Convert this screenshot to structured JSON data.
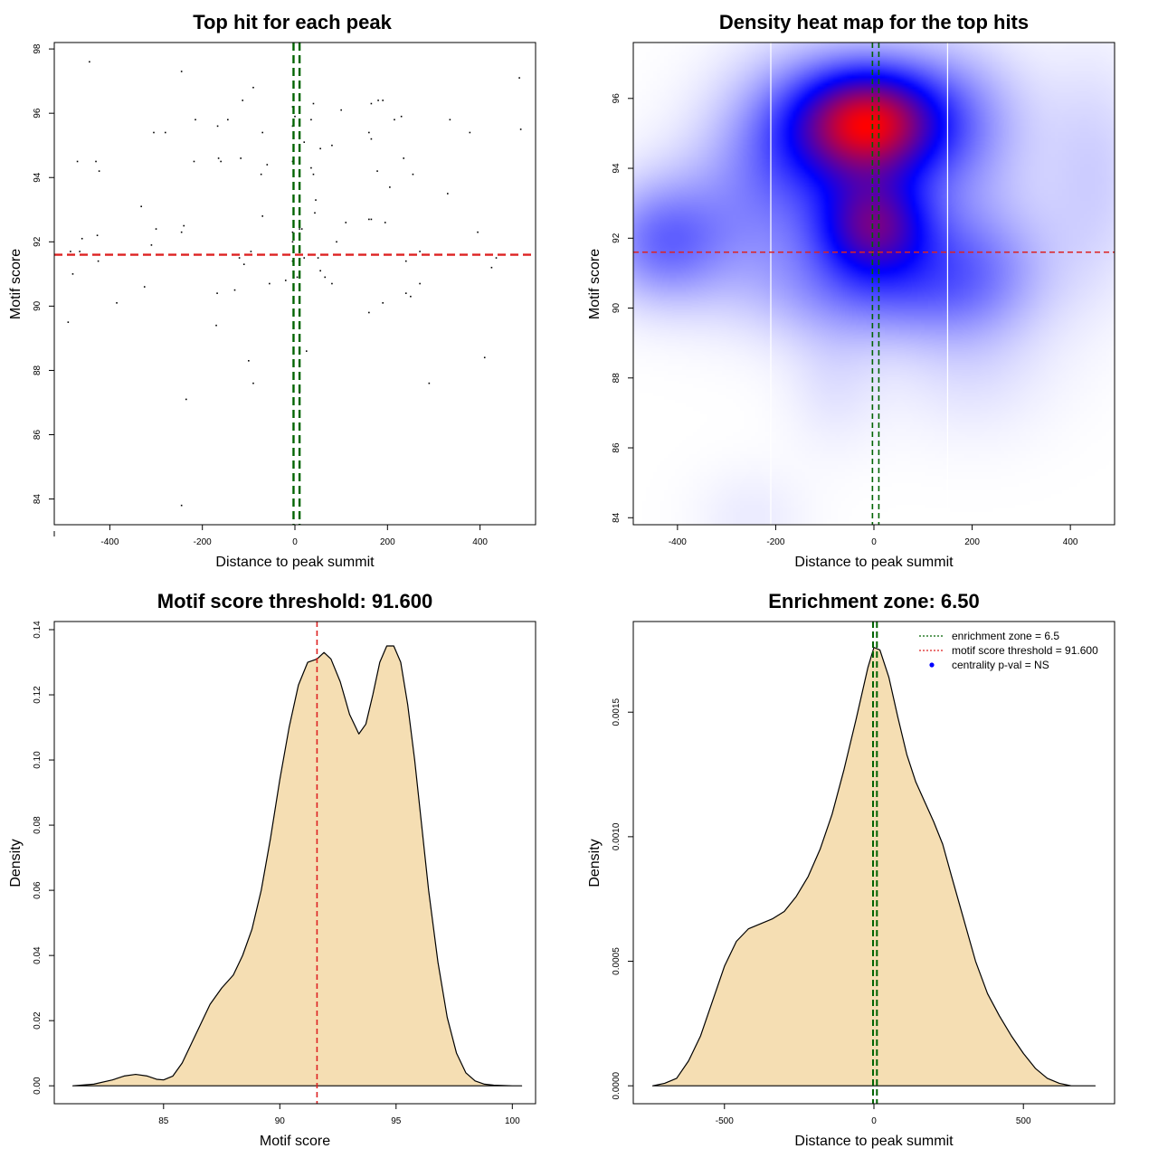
{
  "chart_data": [
    {
      "id": "scatter",
      "type": "scatter",
      "title": "Top hit for each peak",
      "xlabel": "Distance to peak summit",
      "ylabel": "Motif score",
      "xlim": [
        -520,
        520
      ],
      "ylim": [
        83.2,
        98.2
      ],
      "xticks": [
        -400,
        -200,
        0,
        200,
        400
      ],
      "xtick_labels": [
        "-400",
        "-200",
        "0",
        "200",
        "400"
      ],
      "yticks": [
        84,
        86,
        88,
        90,
        92,
        94,
        96,
        98
      ],
      "ytick_labels": [
        "84",
        "86",
        "88",
        "90",
        "92",
        "94",
        "96",
        "98"
      ],
      "vlines": [
        {
          "x": -3,
          "color": "#006400",
          "style": "dashed"
        },
        {
          "x": 10,
          "color": "#006400",
          "style": "dashed"
        }
      ],
      "hlines": [
        {
          "y": 91.6,
          "color": "#dd2222",
          "style": "dashed"
        }
      ],
      "points": [
        [
          -444,
          97.6
        ],
        [
          -245,
          97.3
        ],
        [
          485,
          97.1
        ],
        [
          -90,
          96.8
        ],
        [
          -113,
          96.4
        ],
        [
          10,
          96.4
        ],
        [
          165,
          96.3
        ],
        [
          190,
          96.4
        ],
        [
          180,
          96.4
        ],
        [
          40,
          96.3
        ],
        [
          -5,
          96.2
        ],
        [
          100,
          96.1
        ],
        [
          0,
          95.9
        ],
        [
          35,
          95.8
        ],
        [
          -215,
          95.8
        ],
        [
          -145,
          95.8
        ],
        [
          215,
          95.8
        ],
        [
          230,
          95.9
        ],
        [
          335,
          95.8
        ],
        [
          -167,
          95.6
        ],
        [
          -5,
          95.6
        ],
        [
          488,
          95.5
        ],
        [
          -305,
          95.4
        ],
        [
          -280,
          95.4
        ],
        [
          -70,
          95.4
        ],
        [
          160,
          95.4
        ],
        [
          165,
          95.2
        ],
        [
          378,
          95.4
        ],
        [
          20,
          95.1
        ],
        [
          80,
          95.0
        ],
        [
          55,
          94.9
        ],
        [
          -165,
          94.6
        ],
        [
          -117,
          94.6
        ],
        [
          -470,
          94.5
        ],
        [
          -430,
          94.5
        ],
        [
          -218,
          94.5
        ],
        [
          -160,
          94.5
        ],
        [
          -60,
          94.4
        ],
        [
          -5,
          94.5
        ],
        [
          40,
          94.1
        ],
        [
          35,
          94.3
        ],
        [
          235,
          94.6
        ],
        [
          -423,
          94.2
        ],
        [
          -73,
          94.1
        ],
        [
          255,
          94.1
        ],
        [
          178,
          94.2
        ],
        [
          205,
          93.7
        ],
        [
          330,
          93.5
        ],
        [
          45,
          93.3
        ],
        [
          -332,
          93.1
        ],
        [
          43,
          92.9
        ],
        [
          -70,
          92.8
        ],
        [
          160,
          92.7
        ],
        [
          165,
          92.7
        ],
        [
          195,
          92.6
        ],
        [
          110,
          92.6
        ],
        [
          -240,
          92.5
        ],
        [
          -300,
          92.4
        ],
        [
          -245,
          92.3
        ],
        [
          15,
          92.4
        ],
        [
          -5,
          92.3
        ],
        [
          10,
          92.4
        ],
        [
          395,
          92.3
        ],
        [
          -460,
          92.1
        ],
        [
          -427,
          92.2
        ],
        [
          -5,
          92.0
        ],
        [
          -310,
          91.9
        ],
        [
          90,
          92.0
        ],
        [
          -485,
          91.7
        ],
        [
          -465,
          91.7
        ],
        [
          -95,
          91.7
        ],
        [
          -120,
          91.5
        ],
        [
          -110,
          91.3
        ],
        [
          -5,
          91.4
        ],
        [
          20,
          91.5
        ],
        [
          50,
          91.5
        ],
        [
          240,
          91.4
        ],
        [
          270,
          91.7
        ],
        [
          425,
          91.2
        ],
        [
          435,
          91.5
        ],
        [
          -425,
          91.4
        ],
        [
          -480,
          91.0
        ],
        [
          -55,
          90.7
        ],
        [
          -20,
          90.8
        ],
        [
          5,
          90.9
        ],
        [
          55,
          91.1
        ],
        [
          65,
          90.9
        ],
        [
          80,
          90.7
        ],
        [
          270,
          90.7
        ],
        [
          -325,
          90.6
        ],
        [
          -130,
          90.5
        ],
        [
          -168,
          90.4
        ],
        [
          240,
          90.4
        ],
        [
          250,
          90.3
        ],
        [
          -385,
          90.1
        ],
        [
          190,
          90.1
        ],
        [
          -490,
          89.5
        ],
        [
          -170,
          89.4
        ],
        [
          160,
          89.8
        ],
        [
          25,
          88.6
        ],
        [
          410,
          88.4
        ],
        [
          -100,
          88.3
        ],
        [
          -90,
          87.6
        ],
        [
          290,
          87.6
        ],
        [
          10,
          87.3
        ],
        [
          -235,
          87.1
        ],
        [
          -245,
          83.8
        ]
      ]
    },
    {
      "id": "heatmap",
      "type": "heatmap",
      "title": "Density heat map for the top hits",
      "xlabel": "Distance to peak summit",
      "ylabel": "Motif score",
      "xlim": [
        -490,
        490
      ],
      "ylim": [
        83.8,
        97.6
      ],
      "xticks": [
        -400,
        -200,
        0,
        200,
        400
      ],
      "xtick_labels": [
        "-400",
        "-200",
        "0",
        "200",
        "400"
      ],
      "yticks": [
        84,
        86,
        88,
        90,
        92,
        94,
        96
      ],
      "ytick_labels": [
        "84",
        "86",
        "88",
        "90",
        "92",
        "94",
        "96"
      ],
      "color_scale": [
        "#ffffff",
        "#0000ff",
        "#ff0000"
      ],
      "white_vlines": [
        -210,
        150
      ],
      "vlines": [
        {
          "x": -3,
          "color": "#006400",
          "style": "dashed"
        },
        {
          "x": 10,
          "color": "#006400",
          "style": "dashed"
        }
      ],
      "hlines": [
        {
          "y": 91.6,
          "color": "#dd2222",
          "style": "dashed"
        }
      ],
      "density_blobs": [
        {
          "x": -10,
          "y": 95.3,
          "sx": 95,
          "sy": 1.1,
          "w": 1.0
        },
        {
          "x": 0,
          "y": 92.4,
          "sx": 80,
          "sy": 1.0,
          "w": 0.72
        },
        {
          "x": -140,
          "y": 95.0,
          "sx": 110,
          "sy": 1.6,
          "w": 0.35
        },
        {
          "x": 150,
          "y": 95.2,
          "sx": 110,
          "sy": 1.6,
          "w": 0.33
        },
        {
          "x": -430,
          "y": 91.9,
          "sx": 90,
          "sy": 1.2,
          "w": 0.35
        },
        {
          "x": 0,
          "y": 90.6,
          "sx": 150,
          "sy": 1.1,
          "w": 0.3
        },
        {
          "x": 200,
          "y": 91.2,
          "sx": 110,
          "sy": 1.4,
          "w": 0.28
        },
        {
          "x": 450,
          "y": 93.8,
          "sx": 80,
          "sy": 2.4,
          "w": 0.12
        },
        {
          "x": -240,
          "y": 92.8,
          "sx": 120,
          "sy": 1.8,
          "w": 0.2
        },
        {
          "x": -80,
          "y": 88.0,
          "sx": 70,
          "sy": 1.4,
          "w": 0.07
        },
        {
          "x": 200,
          "y": 88.2,
          "sx": 120,
          "sy": 1.4,
          "w": 0.07
        },
        {
          "x": -250,
          "y": 84.0,
          "sx": 80,
          "sy": 1.0,
          "w": 0.05
        }
      ]
    },
    {
      "id": "score-density",
      "type": "area",
      "title": "Motif score threshold: 91.600",
      "xlabel": "Motif score",
      "ylabel": "Density",
      "xlim": [
        80.3,
        101.0
      ],
      "ylim": [
        -0.0055,
        0.1425
      ],
      "xticks": [
        85,
        90,
        95,
        100
      ],
      "xtick_labels": [
        "85",
        "90",
        "95",
        "100"
      ],
      "yticks": [
        0.0,
        0.02,
        0.04,
        0.06,
        0.08,
        0.1,
        0.12,
        0.14
      ],
      "ytick_labels": [
        "0.00",
        "0.02",
        "0.04",
        "0.06",
        "0.08",
        "0.10",
        "0.12",
        "0.14"
      ],
      "fill_color": "#f5deb3",
      "vlines": [
        {
          "x": 91.6,
          "color": "#dd2222",
          "style": "dashed"
        }
      ],
      "x": [
        81.1,
        82.0,
        82.8,
        83.3,
        83.8,
        84.3,
        84.7,
        85.0,
        85.4,
        85.8,
        86.2,
        86.6,
        87.0,
        87.5,
        88.0,
        88.4,
        88.8,
        89.2,
        89.6,
        90.0,
        90.4,
        90.8,
        91.2,
        91.6,
        91.9,
        92.2,
        92.6,
        93.0,
        93.4,
        93.7,
        94.0,
        94.3,
        94.6,
        94.9,
        95.2,
        95.5,
        95.8,
        96.1,
        96.4,
        96.8,
        97.2,
        97.6,
        98.0,
        98.4,
        98.8,
        99.2,
        99.6,
        100.0,
        100.4
      ],
      "y": [
        0.0,
        0.0005,
        0.0018,
        0.003,
        0.0035,
        0.003,
        0.002,
        0.0018,
        0.003,
        0.007,
        0.013,
        0.019,
        0.025,
        0.03,
        0.034,
        0.04,
        0.048,
        0.06,
        0.076,
        0.094,
        0.11,
        0.123,
        0.13,
        0.131,
        0.133,
        0.131,
        0.124,
        0.114,
        0.108,
        0.111,
        0.12,
        0.13,
        0.135,
        0.135,
        0.13,
        0.117,
        0.1,
        0.08,
        0.06,
        0.038,
        0.021,
        0.01,
        0.004,
        0.0015,
        0.0005,
        0.0002,
        0.0001,
        0.0,
        0.0
      ]
    },
    {
      "id": "distance-density",
      "type": "area",
      "title": "Enrichment zone: 6.50",
      "xlabel": "Distance to peak summit",
      "ylabel": "Density",
      "xlim": [
        -805,
        805
      ],
      "ylim": [
        -7.2e-05,
        0.001864
      ],
      "xticks": [
        -500,
        0,
        500
      ],
      "xtick_labels": [
        "-500",
        "0",
        "500"
      ],
      "yticks": [
        0.0,
        0.0005,
        0.001,
        0.0015
      ],
      "ytick_labels": [
        "0.0000",
        "0.0005",
        "0.0010",
        "0.0015"
      ],
      "fill_color": "#f5deb3",
      "vlines": [
        {
          "x": -3,
          "color": "#006400",
          "style": "dashed"
        },
        {
          "x": 10,
          "color": "#006400",
          "style": "dashed"
        }
      ],
      "x": [
        -740,
        -700,
        -660,
        -620,
        -580,
        -540,
        -500,
        -460,
        -420,
        -380,
        -340,
        -300,
        -260,
        -220,
        -180,
        -140,
        -100,
        -60,
        -20,
        0,
        20,
        50,
        80,
        110,
        140,
        170,
        200,
        230,
        260,
        300,
        340,
        380,
        420,
        460,
        500,
        540,
        580,
        620,
        660,
        700,
        740
      ],
      "y": [
        0.0,
        1e-05,
        3e-05,
        0.0001,
        0.0002,
        0.00034,
        0.00048,
        0.00058,
        0.00063,
        0.00065,
        0.00067,
        0.0007,
        0.00076,
        0.00084,
        0.00095,
        0.00109,
        0.00127,
        0.00147,
        0.00168,
        0.00176,
        0.00175,
        0.00164,
        0.00148,
        0.00133,
        0.00122,
        0.00114,
        0.00106,
        0.00097,
        0.00084,
        0.00067,
        0.0005,
        0.00037,
        0.00028,
        0.0002,
        0.00013,
        7e-05,
        3e-05,
        1e-05,
        0.0,
        0.0,
        0.0
      ],
      "legend": [
        {
          "label": "enrichment zone = 6.5",
          "color": "#006400",
          "kind": "dotted-line"
        },
        {
          "label": "motif score threshold = 91.600",
          "color": "#dd2222",
          "kind": "dotted-line"
        },
        {
          "label": "centrality p-val = NS",
          "color": "#0000ff",
          "kind": "point"
        }
      ]
    }
  ]
}
